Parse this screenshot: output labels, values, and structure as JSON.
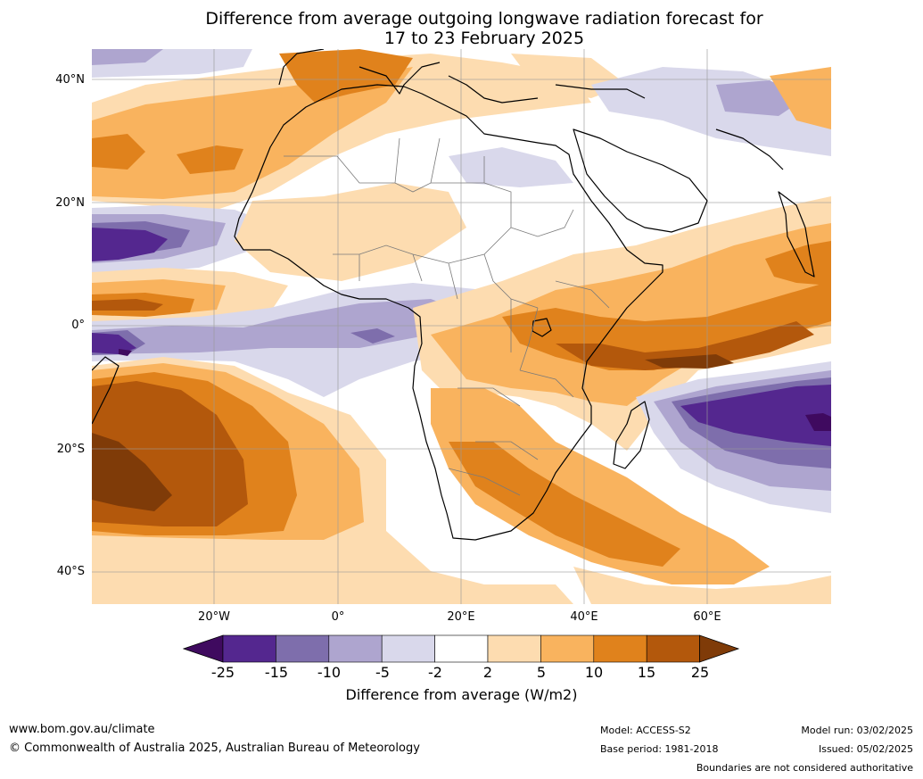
{
  "title_line1": "Difference from average outgoing longwave radiation forecast for",
  "title_line2": "17 to 23 February 2025",
  "lat_labels": [
    "40°N",
    "20°N",
    "0°",
    "20°S",
    "40°S"
  ],
  "lon_labels": [
    "20°W",
    "0°",
    "20°E",
    "40°E",
    "60°E"
  ],
  "colorbar": {
    "title": "Difference from average (W/m2)",
    "ticks": [
      "-25",
      "-15",
      "-10",
      "-5",
      "-2",
      "2",
      "5",
      "10",
      "15",
      "25"
    ],
    "colors": [
      "#3f0a5f",
      "#54278f",
      "#7e6eac",
      "#aea5cf",
      "#d9d8eb",
      "#ffffff",
      "#fddcb0",
      "#f9b35e",
      "#e0821c",
      "#b3580c",
      "#7f3b08"
    ]
  },
  "footer": {
    "website": "www.bom.gov.au/climate",
    "copyright": "© Commonwealth of Australia 2025, Australian Bureau of Meteorology",
    "model": "Model: ACCESS-S2",
    "base_period": "Base period: 1981-2018",
    "model_run": "Model run: 03/02/2025",
    "issued": "Issued: 05/02/2025",
    "disclaimer": "Boundaries are not considered authoritative"
  }
}
